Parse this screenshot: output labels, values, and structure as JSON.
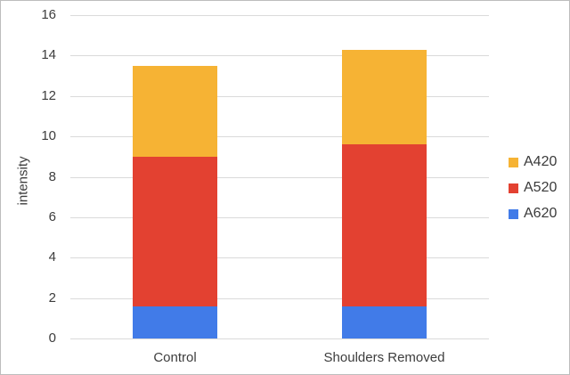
{
  "chart_data": {
    "type": "bar",
    "stacked": true,
    "title": "",
    "xlabel": "",
    "ylabel": "intensity",
    "categories": [
      "Control",
      "Shoulders Removed"
    ],
    "series": [
      {
        "name": "A620",
        "color": "#417be8",
        "values": [
          1.6,
          1.6
        ]
      },
      {
        "name": "A520",
        "color": "#e34131",
        "values": [
          7.4,
          8.0
        ]
      },
      {
        "name": "A420",
        "color": "#f6b334",
        "values": [
          4.5,
          4.7
        ]
      }
    ],
    "stack_totals": [
      13.5,
      14.3
    ],
    "ylim": [
      0,
      16
    ],
    "yticks": [
      0,
      2,
      4,
      6,
      8,
      10,
      12,
      14,
      16
    ],
    "grid": true,
    "legend_position": "right",
    "legend_order": [
      "A420",
      "A520",
      "A620"
    ]
  },
  "colors": {
    "gridline": "#dadada",
    "axis_text": "#3d3d3d",
    "background": "#ffffff",
    "frame_border": "#bdbdbd"
  }
}
